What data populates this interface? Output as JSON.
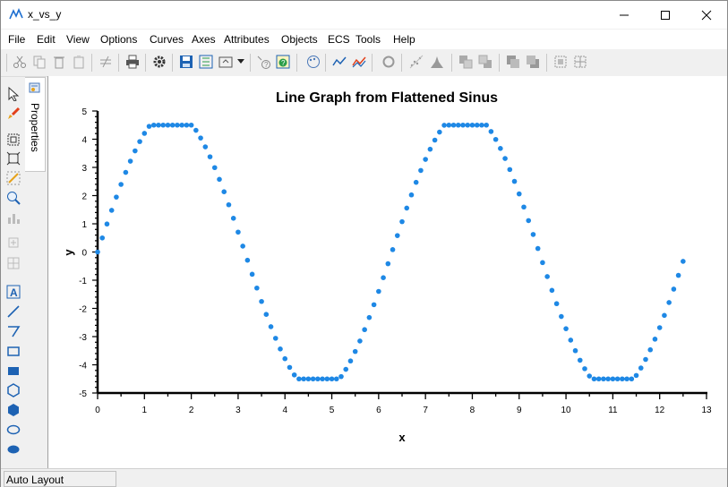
{
  "window": {
    "title": "x_vs_y"
  },
  "menu": [
    "File",
    "Edit",
    "View",
    "Options",
    "Curves",
    "Axes",
    "Attributes",
    "Objects",
    "ECS",
    "Tools",
    "Help"
  ],
  "side_tab": {
    "label": "Properties"
  },
  "status": {
    "text": "Auto Layout"
  },
  "colors": {
    "series": "#1e88e5",
    "axis": "#000000"
  },
  "chart_data": {
    "type": "scatter",
    "title": "Line Graph from Flattened Sinus",
    "xlabel": "x",
    "ylabel": "y",
    "xlim": [
      0,
      13
    ],
    "ylim": [
      -5,
      5
    ],
    "x_ticks": [
      "0",
      "1",
      "2",
      "3",
      "4",
      "5",
      "6",
      "7",
      "8",
      "9",
      "10",
      "11",
      "12",
      "13"
    ],
    "y_ticks": [
      "5",
      "4",
      "3",
      "2",
      "1",
      "0",
      "-1",
      "-2",
      "-3",
      "-4",
      "-5"
    ],
    "grid": false,
    "legend": "none",
    "series": [
      {
        "x_start": 0,
        "x_end": 12.5,
        "x_step": 0.1,
        "rule": "y = clip(5*sin(x), -4.5, 4.5)"
      }
    ]
  }
}
